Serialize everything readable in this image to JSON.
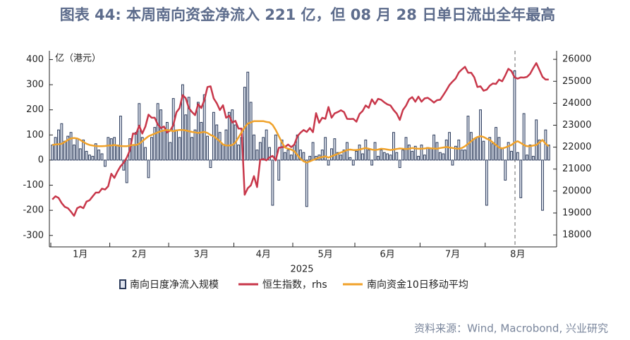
{
  "chart_data": {
    "type": "bar",
    "title": "图表 44: 本周南向资金净流入 221 亿，但 08 月 28 日单日流出全年最高",
    "y_label": "亿（港元）",
    "x_label": "2025",
    "source": "资料来源：Wind, Macrobond, 兴业研究",
    "categories": [
      null,
      null,
      null,
      null,
      null,
      null,
      null,
      null,
      null,
      "1月",
      null,
      null,
      null,
      null,
      null,
      null,
      null,
      null,
      null,
      null,
      null,
      null,
      null,
      null,
      null,
      null,
      null,
      null,
      "2月",
      null,
      null,
      null,
      null,
      null,
      null,
      null,
      null,
      null,
      null,
      null,
      null,
      null,
      null,
      null,
      null,
      null,
      null,
      null,
      "3月",
      null,
      null,
      null,
      null,
      null,
      null,
      null,
      null,
      null,
      null,
      null,
      null,
      null,
      null,
      null,
      null,
      null,
      null,
      null,
      "4月",
      null,
      null,
      null,
      null,
      null,
      null,
      null,
      null,
      null,
      null,
      null,
      null,
      null,
      null,
      null,
      null,
      null,
      null,
      null,
      "5月",
      null,
      null,
      null,
      null,
      null,
      null,
      null,
      null,
      null,
      null,
      null,
      null,
      null,
      null,
      null,
      null,
      null,
      null,
      null,
      "6月",
      null,
      null,
      null,
      null,
      null,
      null,
      null,
      null,
      null,
      null,
      null,
      null,
      null,
      null,
      null,
      null,
      null,
      null,
      null,
      null,
      "7月",
      null,
      null,
      null,
      null,
      null,
      null,
      null,
      null,
      null,
      null,
      null,
      null,
      null,
      null,
      null,
      null,
      null,
      null,
      null,
      null,
      "8月",
      null,
      null,
      null,
      null,
      null,
      null,
      null,
      null,
      null,
      null
    ],
    "series": [
      {
        "name": "南向日度净流入规模",
        "type": "bar",
        "axis": "y",
        "color": "#2b3a5a",
        "values": [
          60,
          90,
          120,
          145,
          75,
          95,
          110,
          60,
          85,
          45,
          80,
          35,
          20,
          15,
          65,
          40,
          25,
          -25,
          90,
          85,
          90,
          60,
          175,
          -40,
          -90,
          85,
          60,
          110,
          225,
          90,
          50,
          -70,
          90,
          130,
          225,
          200,
          120,
          150,
          70,
          245,
          120,
          90,
          300,
          180,
          250,
          90,
          120,
          230,
          150,
          260,
          95,
          -30,
          190,
          140,
          110,
          60,
          120,
          190,
          200,
          140,
          60,
          90,
          290,
          350,
          230,
          100,
          40,
          70,
          90,
          120,
          50,
          -180,
          100,
          -80,
          80,
          30,
          40,
          20,
          60,
          100,
          40,
          30,
          -185,
          15,
          70,
          15,
          20,
          40,
          90,
          -20,
          45,
          85,
          30,
          20,
          40,
          70,
          10,
          -20,
          35,
          60,
          25,
          80,
          40,
          -20,
          70,
          15,
          40,
          30,
          25,
          20,
          110,
          30,
          -30,
          40,
          90,
          60,
          35,
          55,
          15,
          60,
          20,
          50,
          45,
          100,
          70,
          30,
          25,
          80,
          110,
          -20,
          55,
          80,
          40,
          40,
          175,
          110,
          85,
          90,
          200,
          75,
          -180,
          90,
          65,
          130,
          90,
          45,
          -80,
          70,
          35,
          355,
          30,
          -150,
          185,
          20,
          60,
          15,
          160,
          80,
          -200,
          120,
          60
        ]
      },
      {
        "name": "恒生指数，rhs",
        "type": "line",
        "axis": "y2",
        "color": "#c8374a",
        "values": [
          19620,
          19760,
          19690,
          19450,
          19280,
          19220,
          19060,
          18870,
          19220,
          19290,
          19220,
          19520,
          19580,
          19760,
          19930,
          19930,
          20110,
          20070,
          20220,
          20790,
          20600,
          20890,
          21130,
          21290,
          21520,
          21860,
          22620,
          22600,
          22980,
          22620,
          22940,
          23480,
          23340,
          23340,
          23030,
          22870,
          22940,
          22670,
          22760,
          23010,
          23590,
          23780,
          24370,
          24230,
          23780,
          23600,
          23460,
          23960,
          23780,
          24150,
          24740,
          24770,
          24220,
          24000,
          23690,
          23910,
          23340,
          23430,
          23120,
          23200,
          22850,
          22850,
          19830,
          20130,
          20260,
          20680,
          20180,
          21420,
          21460,
          21400,
          21530,
          21600,
          21400,
          21970,
          22000,
          22010,
          22120,
          22000,
          22120,
          22500,
          22660,
          22780,
          22690,
          22870,
          22680,
          23550,
          23110,
          23340,
          23290,
          23830,
          23340,
          23540,
          23600,
          23680,
          23600,
          23290,
          23280,
          23290,
          23160,
          23510,
          23650,
          23900,
          23790,
          24180,
          23960,
          24200,
          24160,
          24040,
          23950,
          23900,
          23690,
          23530,
          23240,
          23690,
          23890,
          24180,
          24280,
          24070,
          24300,
          24070,
          24220,
          24250,
          24150,
          24030,
          24140,
          24160,
          24370,
          24590,
          24830,
          24990,
          25130,
          25400,
          25540,
          25660,
          25390,
          25390,
          25180,
          24740,
          24770,
          24570,
          24620,
          24800,
          24900,
          24880,
          25080,
          25000,
          25270,
          25570,
          25460,
          25180,
          25120,
          25180,
          25170,
          25200,
          25340,
          25600,
          25830,
          25520,
          25200,
          25080,
          25080
        ]
      },
      {
        "name": "南向资金10日移动平均",
        "type": "line",
        "axis": "y",
        "color": "#f0a22a",
        "values": [
          60,
          62,
          63,
          65,
          72,
          80,
          86,
          88,
          86,
          80,
          72,
          65,
          60,
          58,
          56,
          55,
          55,
          56,
          58,
          58,
          60,
          58,
          56,
          55,
          55,
          58,
          60,
          60,
          65,
          75,
          85,
          95,
          100,
          105,
          110,
          115,
          118,
          120,
          118,
          115,
          118,
          120,
          120,
          118,
          115,
          112,
          110,
          108,
          110,
          112,
          108,
          100,
          95,
          85,
          75,
          62,
          58,
          58,
          60,
          70,
          90,
          110,
          130,
          145,
          150,
          155,
          155,
          155,
          155,
          152,
          150,
          140,
          120,
          95,
          70,
          50,
          45,
          42,
          35,
          20,
          5,
          -5,
          -10,
          -5,
          0,
          5,
          10,
          12,
          15,
          10,
          15,
          20,
          25,
          30,
          35,
          40,
          42,
          40,
          40,
          42,
          45,
          48,
          45,
          42,
          40,
          42,
          45,
          44,
          42,
          40,
          42,
          44,
          46,
          45,
          44,
          45,
          48,
          46,
          45,
          45,
          46,
          48,
          47,
          46,
          45,
          48,
          50,
          52,
          50,
          48,
          46,
          45,
          48,
          55,
          65,
          75,
          85,
          92,
          95,
          92,
          85,
          80,
          70,
          60,
          50,
          46,
          50,
          55,
          60,
          70,
          75,
          68,
          60,
          55,
          55,
          58,
          60,
          70,
          80,
          65,
          55
        ]
      }
    ],
    "ylim": [
      -340,
      435
    ],
    "yticks": [
      -300,
      -200,
      -100,
      0,
      100,
      200,
      300,
      400
    ],
    "y2lim": [
      17520,
      26390
    ],
    "y2ticks": [
      18000,
      19000,
      20000,
      21000,
      22000,
      23000,
      24000,
      25000,
      26000
    ]
  }
}
